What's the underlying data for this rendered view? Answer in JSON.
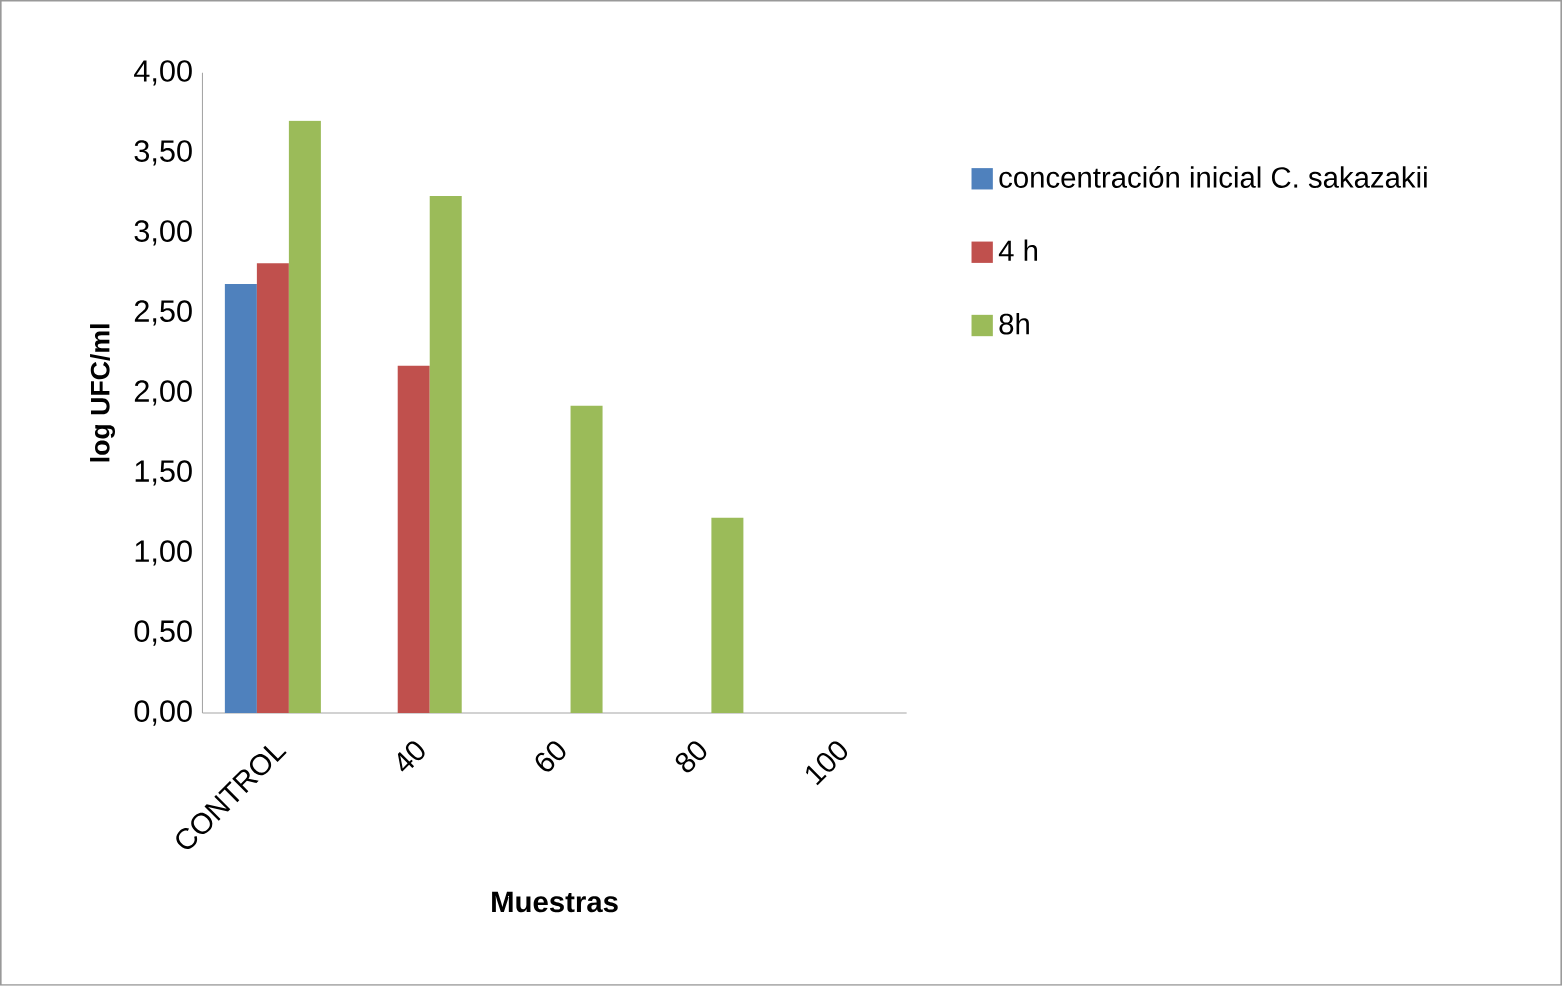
{
  "chart_data": {
    "type": "bar",
    "xlabel": "Muestras",
    "ylabel": "log UFC/ml",
    "categories": [
      "CONTROL",
      "40",
      "60",
      "80",
      "100"
    ],
    "series": [
      {
        "name": "concentración inicial C. sakazakii",
        "color": "#4f81bd",
        "values": [
          2.68,
          null,
          null,
          null,
          null
        ]
      },
      {
        "name": "4 h",
        "color": "#c0504d",
        "values": [
          2.81,
          2.17,
          null,
          null,
          null
        ]
      },
      {
        "name": "8h",
        "color": "#9bbb59",
        "values": [
          3.7,
          3.23,
          1.92,
          1.22,
          null
        ]
      }
    ],
    "ylim": [
      0,
      4
    ],
    "yticks": [
      {
        "value": 0,
        "label": "0,00"
      },
      {
        "value": 0.5,
        "label": "0,50"
      },
      {
        "value": 1,
        "label": "1,00"
      },
      {
        "value": 1.5,
        "label": "1,50"
      },
      {
        "value": 2,
        "label": "2,00"
      },
      {
        "value": 2.5,
        "label": "2,50"
      },
      {
        "value": 3,
        "label": "3,00"
      },
      {
        "value": 3.5,
        "label": "3,50"
      },
      {
        "value": 4,
        "label": "4,00"
      }
    ],
    "legend": "right",
    "grid": false
  }
}
